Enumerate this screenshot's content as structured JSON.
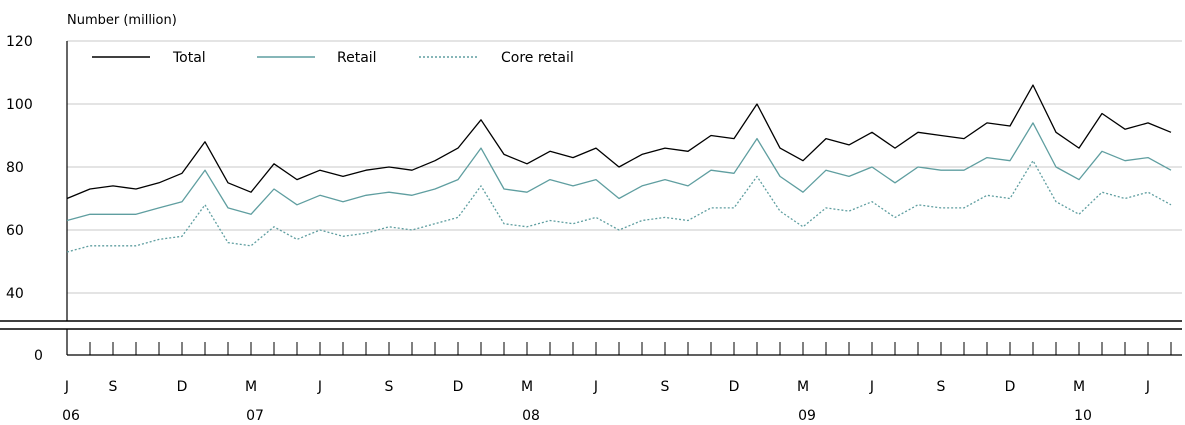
{
  "chart_data": {
    "type": "line",
    "ylabel": "Number (million)",
    "y_ticks": [
      120,
      100,
      80,
      60,
      40
    ],
    "y_break_tick": 0,
    "ylim": [
      30,
      120
    ],
    "x_tick_labels": [
      {
        "index": 0,
        "month": "J",
        "year": "06"
      },
      {
        "index": 2,
        "month": "S",
        "year": ""
      },
      {
        "index": 5,
        "month": "D",
        "year": ""
      },
      {
        "index": 8,
        "month": "M",
        "year": "07"
      },
      {
        "index": 11,
        "month": "J",
        "year": ""
      },
      {
        "index": 14,
        "month": "S",
        "year": ""
      },
      {
        "index": 17,
        "month": "D",
        "year": ""
      },
      {
        "index": 20,
        "month": "M",
        "year": "08"
      },
      {
        "index": 23,
        "month": "J",
        "year": ""
      },
      {
        "index": 26,
        "month": "S",
        "year": ""
      },
      {
        "index": 29,
        "month": "D",
        "year": ""
      },
      {
        "index": 32,
        "month": "M",
        "year": "09"
      },
      {
        "index": 35,
        "month": "J",
        "year": ""
      },
      {
        "index": 38,
        "month": "S",
        "year": ""
      },
      {
        "index": 41,
        "month": "D",
        "year": ""
      },
      {
        "index": 44,
        "month": "M",
        "year": "10"
      },
      {
        "index": 47,
        "month": "J",
        "year": ""
      }
    ],
    "series": [
      {
        "name": "Total",
        "color": "#000000",
        "dash": "solid",
        "values": [
          70,
          73,
          74,
          73,
          75,
          78,
          88,
          75,
          72,
          81,
          76,
          79,
          77,
          79,
          80,
          79,
          82,
          86,
          95,
          84,
          81,
          85,
          83,
          86,
          80,
          84,
          86,
          85,
          90,
          89,
          100,
          86,
          82,
          89,
          87,
          91,
          86,
          91,
          90,
          89,
          94,
          93,
          106,
          91,
          86,
          97,
          92,
          94,
          91
        ]
      },
      {
        "name": "Retail",
        "color": "#5f9ea0",
        "dash": "solid",
        "values": [
          63,
          65,
          65,
          65,
          67,
          69,
          79,
          67,
          65,
          73,
          68,
          71,
          69,
          71,
          72,
          71,
          73,
          76,
          86,
          73,
          72,
          76,
          74,
          76,
          70,
          74,
          76,
          74,
          79,
          78,
          89,
          77,
          72,
          79,
          77,
          80,
          75,
          80,
          79,
          79,
          83,
          82,
          94,
          80,
          76,
          85,
          82,
          83,
          79
        ]
      },
      {
        "name": "Core retail",
        "color": "#5f9ea0",
        "dash": "dotted",
        "values": [
          53,
          55,
          55,
          55,
          57,
          58,
          68,
          56,
          55,
          61,
          57,
          60,
          58,
          59,
          61,
          60,
          62,
          64,
          74,
          62,
          61,
          63,
          62,
          64,
          60,
          63,
          64,
          63,
          67,
          67,
          77,
          66,
          61,
          67,
          66,
          69,
          64,
          68,
          67,
          67,
          71,
          70,
          82,
          69,
          65,
          72,
          70,
          72,
          68
        ]
      }
    ]
  }
}
